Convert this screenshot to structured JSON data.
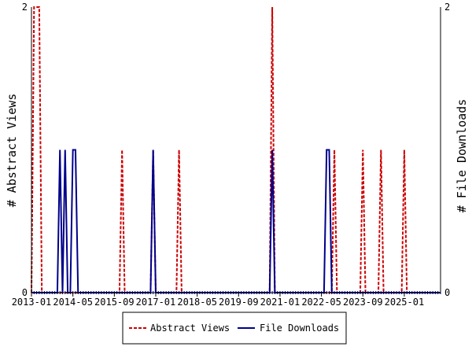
{
  "chart_data": {
    "type": "line",
    "left_axis": {
      "label": "# Abstract Views",
      "ylim": [
        0,
        2
      ],
      "ticks": [
        0,
        2
      ]
    },
    "right_axis": {
      "label": "# File Downloads",
      "ylim": [
        0,
        2
      ],
      "ticks": [
        0,
        2
      ]
    },
    "x_axis": {
      "range": [
        "2013-01",
        "2026-03"
      ],
      "tick_labels": [
        "2013-01",
        "2014-05",
        "2015-09",
        "2017-01",
        "2018-05",
        "2019-09",
        "2021-01",
        "2022-05",
        "2023-09",
        "2025-01"
      ]
    },
    "grid": false,
    "legend": {
      "position": "bottom-center"
    },
    "series": [
      {
        "name": "Abstract Views",
        "axis": "left",
        "color": "#cc0000",
        "style": "dashed",
        "points": [
          [
            "2013-02",
            2
          ],
          [
            "2013-03",
            2
          ],
          [
            "2013-04",
            2
          ],
          [
            "2015-12",
            1
          ],
          [
            "2016-12",
            1
          ],
          [
            "2017-10",
            1
          ],
          [
            "2020-10",
            2
          ],
          [
            "2022-10",
            1
          ],
          [
            "2023-09",
            1
          ],
          [
            "2024-04",
            1
          ],
          [
            "2025-01",
            1
          ]
        ]
      },
      {
        "name": "File Downloads",
        "axis": "right",
        "color": "#00008b",
        "style": "solid",
        "points": [
          [
            "2013-12",
            1
          ],
          [
            "2014-02",
            1
          ],
          [
            "2014-05",
            1
          ],
          [
            "2014-06",
            1
          ],
          [
            "2016-12",
            1
          ],
          [
            "2020-10",
            1
          ],
          [
            "2022-07",
            1
          ],
          [
            "2022-08",
            1
          ]
        ]
      }
    ]
  }
}
